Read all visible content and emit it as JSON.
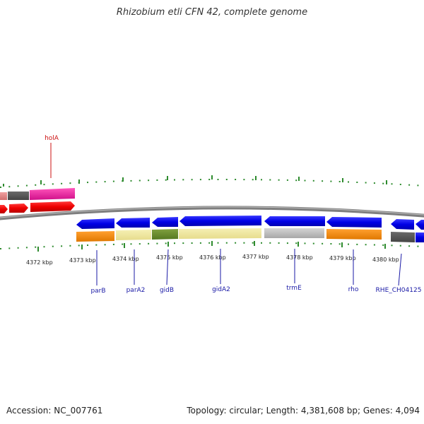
{
  "title": "Rhizobium etli CFN 42, complete genome",
  "accession": "Accession: NC_007761",
  "summary": "Topology: circular; Length: 4,381,608 bp; Genes: 4,094",
  "colors": {
    "backbone": "#8a8a8a",
    "tick": "#2e8b2e",
    "label_blue": "#1a1aa6",
    "label_red": "#cc1111"
  },
  "scale_labels": [
    "4372 kbp",
    "4373 kbp",
    "4374 kbp",
    "4375 kbp",
    "4376 kbp",
    "4377 kbp",
    "4378 kbp",
    "4379 kbp",
    "4380 kbp"
  ],
  "gene_labels": {
    "holA": "holA",
    "parB": "parB",
    "parA2": "parA2",
    "gidB": "gidB",
    "gidA2": "gidA2",
    "trmE": "trmE",
    "rho": "rho",
    "RHE_CH04125": "RHE_CH04125"
  }
}
